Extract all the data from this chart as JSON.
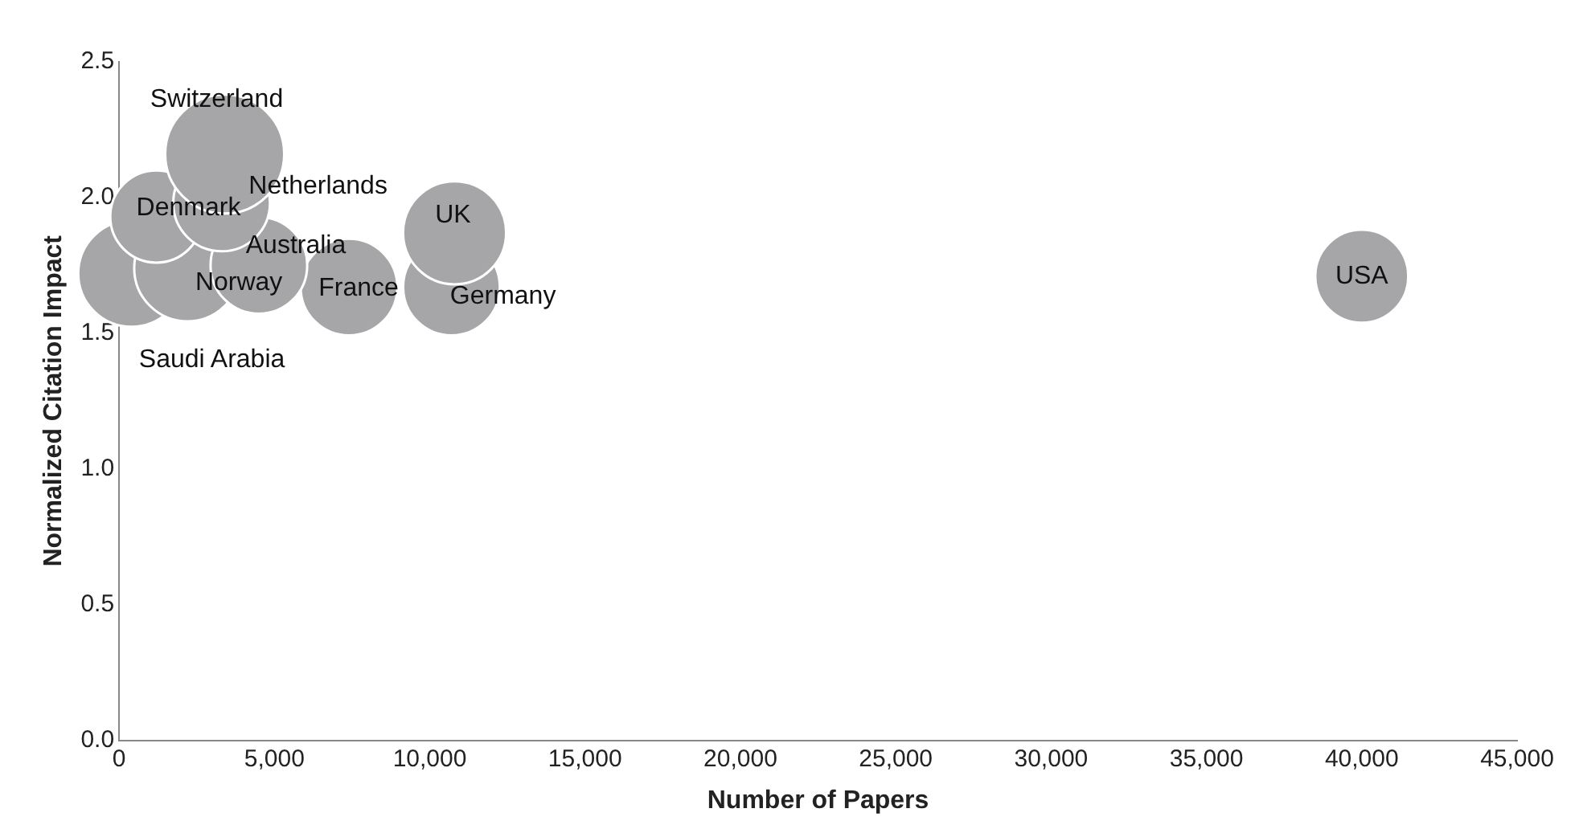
{
  "chart_data": {
    "type": "bubble",
    "xlabel": "Number of Papers",
    "ylabel": "Normalized Citation Impact",
    "xlim": [
      0,
      45000
    ],
    "xticks": [
      0,
      {
        "value": 5000,
        "label": "5,000"
      },
      {
        "value": 10000,
        "label": "10,000"
      },
      {
        "value": 15000,
        "label": "15,000"
      },
      {
        "value": 20000,
        "label": "20,000"
      },
      {
        "value": 25000,
        "label": "25,000"
      },
      {
        "value": 30000,
        "label": "30,000"
      },
      {
        "value": 35000,
        "label": "35,000"
      },
      {
        "value": 40000,
        "label": "40,000"
      },
      {
        "value": 45000,
        "label": "45,000"
      }
    ],
    "ylim": [
      0,
      2.5
    ],
    "yticks": [
      {
        "value": 0,
        "label": "0.0"
      },
      {
        "value": 0.5,
        "label": "0.5"
      },
      {
        "value": 1,
        "label": "1.0"
      },
      {
        "value": 1.5,
        "label": "1.5"
      },
      {
        "value": 2,
        "label": "2.0"
      },
      {
        "value": 2.5,
        "label": "2.5"
      }
    ],
    "grid": false,
    "legend": false,
    "series": [
      {
        "name": "Switzerland",
        "color": "#a6a6a8",
        "x": [
          3400
        ],
        "values": [
          2.16
        ],
        "sizes": [
          1
        ]
      },
      {
        "name": "Netherlands",
        "color": "#a6a6a8",
        "x": [
          3300
        ],
        "values": [
          1.98
        ],
        "sizes": [
          0.66
        ]
      },
      {
        "name": "Denmark",
        "color": "#a6a6a8",
        "x": [
          1200
        ],
        "values": [
          1.93
        ],
        "sizes": [
          0.6
        ]
      },
      {
        "name": "UK",
        "color": "#a6a6a8",
        "x": [
          10800
        ],
        "values": [
          1.87
        ],
        "sizes": [
          0.75
        ]
      },
      {
        "name": "Australia",
        "color": "#a6a6a8",
        "x": [
          4500
        ],
        "values": [
          1.75
        ],
        "sizes": [
          0.66
        ]
      },
      {
        "name": "Norway",
        "color": "#a6a6a8",
        "x": [
          2200
        ],
        "values": [
          1.74
        ],
        "sizes": [
          0.8
        ]
      },
      {
        "name": "Saudi Arabia",
        "color": "#a6a6a8",
        "x": [
          400
        ],
        "values": [
          1.72
        ],
        "sizes": [
          0.8
        ]
      },
      {
        "name": "USA",
        "color": "#a6a6a8",
        "x": [
          40000
        ],
        "values": [
          1.71
        ],
        "sizes": [
          0.61
        ]
      },
      {
        "name": "France",
        "color": "#a6a6a8",
        "x": [
          7400
        ],
        "values": [
          1.67
        ],
        "sizes": [
          0.66
        ]
      },
      {
        "name": "Germany",
        "color": "#a6a6a8",
        "x": [
          10700
        ],
        "values": [
          1.67
        ],
        "sizes": [
          0.66
        ]
      }
    ]
  }
}
